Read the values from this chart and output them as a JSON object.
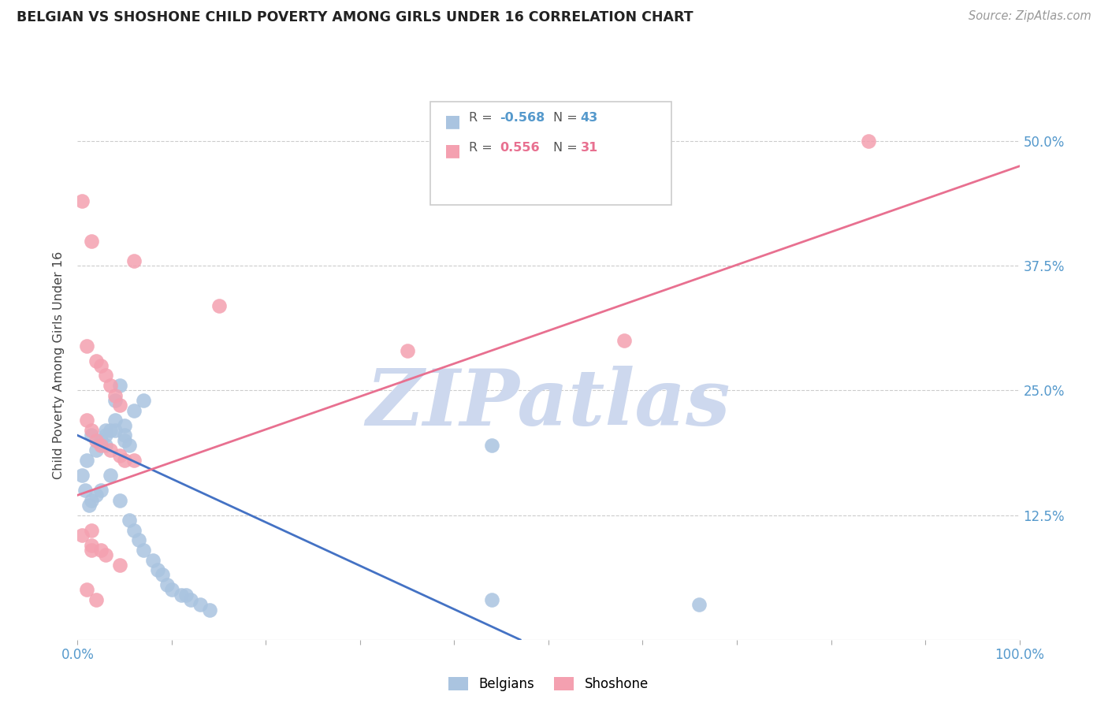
{
  "title": "BELGIAN VS SHOSHONE CHILD POVERTY AMONG GIRLS UNDER 16 CORRELATION CHART",
  "source": "Source: ZipAtlas.com",
  "ylabel": "Child Poverty Among Girls Under 16",
  "ytick_labels": [
    "12.5%",
    "25.0%",
    "37.5%",
    "50.0%"
  ],
  "ytick_values": [
    12.5,
    25.0,
    37.5,
    50.0
  ],
  "xlim": [
    0,
    100
  ],
  "ylim": [
    0,
    55
  ],
  "belgian_R": -0.568,
  "belgian_N": 43,
  "shoshone_R": 0.556,
  "shoshone_N": 31,
  "belgian_color": "#aac4e0",
  "shoshone_color": "#f4a0b0",
  "belgian_line_color": "#4472c4",
  "shoshone_line_color": "#e87090",
  "watermark": "ZIPatlas",
  "watermark_color": "#cdd8ee",
  "belgian_scatter": [
    [
      0.5,
      16.5
    ],
    [
      0.8,
      15.0
    ],
    [
      1.0,
      18.0
    ],
    [
      1.2,
      13.5
    ],
    [
      1.5,
      14.0
    ],
    [
      1.5,
      20.5
    ],
    [
      2.0,
      19.0
    ],
    [
      2.0,
      14.5
    ],
    [
      2.5,
      15.0
    ],
    [
      2.5,
      20.0
    ],
    [
      3.0,
      20.5
    ],
    [
      3.0,
      19.5
    ],
    [
      3.0,
      21.0
    ],
    [
      3.5,
      16.5
    ],
    [
      3.5,
      21.0
    ],
    [
      4.0,
      22.0
    ],
    [
      4.0,
      21.0
    ],
    [
      4.0,
      24.0
    ],
    [
      4.5,
      25.5
    ],
    [
      4.5,
      14.0
    ],
    [
      5.0,
      20.0
    ],
    [
      5.0,
      21.5
    ],
    [
      5.0,
      20.5
    ],
    [
      5.5,
      19.5
    ],
    [
      5.5,
      12.0
    ],
    [
      6.0,
      11.0
    ],
    [
      6.0,
      23.0
    ],
    [
      6.5,
      10.0
    ],
    [
      7.0,
      9.0
    ],
    [
      7.0,
      24.0
    ],
    [
      8.0,
      8.0
    ],
    [
      8.5,
      7.0
    ],
    [
      9.0,
      6.5
    ],
    [
      9.5,
      5.5
    ],
    [
      10.0,
      5.0
    ],
    [
      11.0,
      4.5
    ],
    [
      11.5,
      4.5
    ],
    [
      12.0,
      4.0
    ],
    [
      13.0,
      3.5
    ],
    [
      14.0,
      3.0
    ],
    [
      44.0,
      19.5
    ],
    [
      44.0,
      4.0
    ],
    [
      66.0,
      3.5
    ]
  ],
  "shoshone_scatter": [
    [
      0.5,
      44.0
    ],
    [
      1.5,
      40.0
    ],
    [
      6.0,
      38.0
    ],
    [
      15.0,
      33.5
    ],
    [
      1.0,
      29.5
    ],
    [
      2.0,
      28.0
    ],
    [
      2.5,
      27.5
    ],
    [
      3.0,
      26.5
    ],
    [
      3.5,
      25.5
    ],
    [
      4.0,
      24.5
    ],
    [
      4.5,
      23.5
    ],
    [
      1.0,
      22.0
    ],
    [
      1.5,
      21.0
    ],
    [
      2.0,
      20.0
    ],
    [
      2.5,
      19.5
    ],
    [
      3.5,
      19.0
    ],
    [
      4.5,
      18.5
    ],
    [
      5.0,
      18.0
    ],
    [
      6.0,
      18.0
    ],
    [
      35.0,
      29.0
    ],
    [
      0.5,
      10.5
    ],
    [
      1.5,
      11.0
    ],
    [
      1.5,
      9.5
    ],
    [
      2.5,
      9.0
    ],
    [
      3.0,
      8.5
    ],
    [
      4.5,
      7.5
    ],
    [
      1.0,
      5.0
    ],
    [
      2.0,
      4.0
    ],
    [
      1.5,
      9.0
    ],
    [
      58.0,
      30.0
    ],
    [
      84.0,
      50.0
    ]
  ],
  "blue_line_x": [
    0,
    47
  ],
  "blue_line_y": [
    20.5,
    0
  ],
  "pink_line_x": [
    0,
    100
  ],
  "pink_line_y": [
    14.5,
    47.5
  ]
}
